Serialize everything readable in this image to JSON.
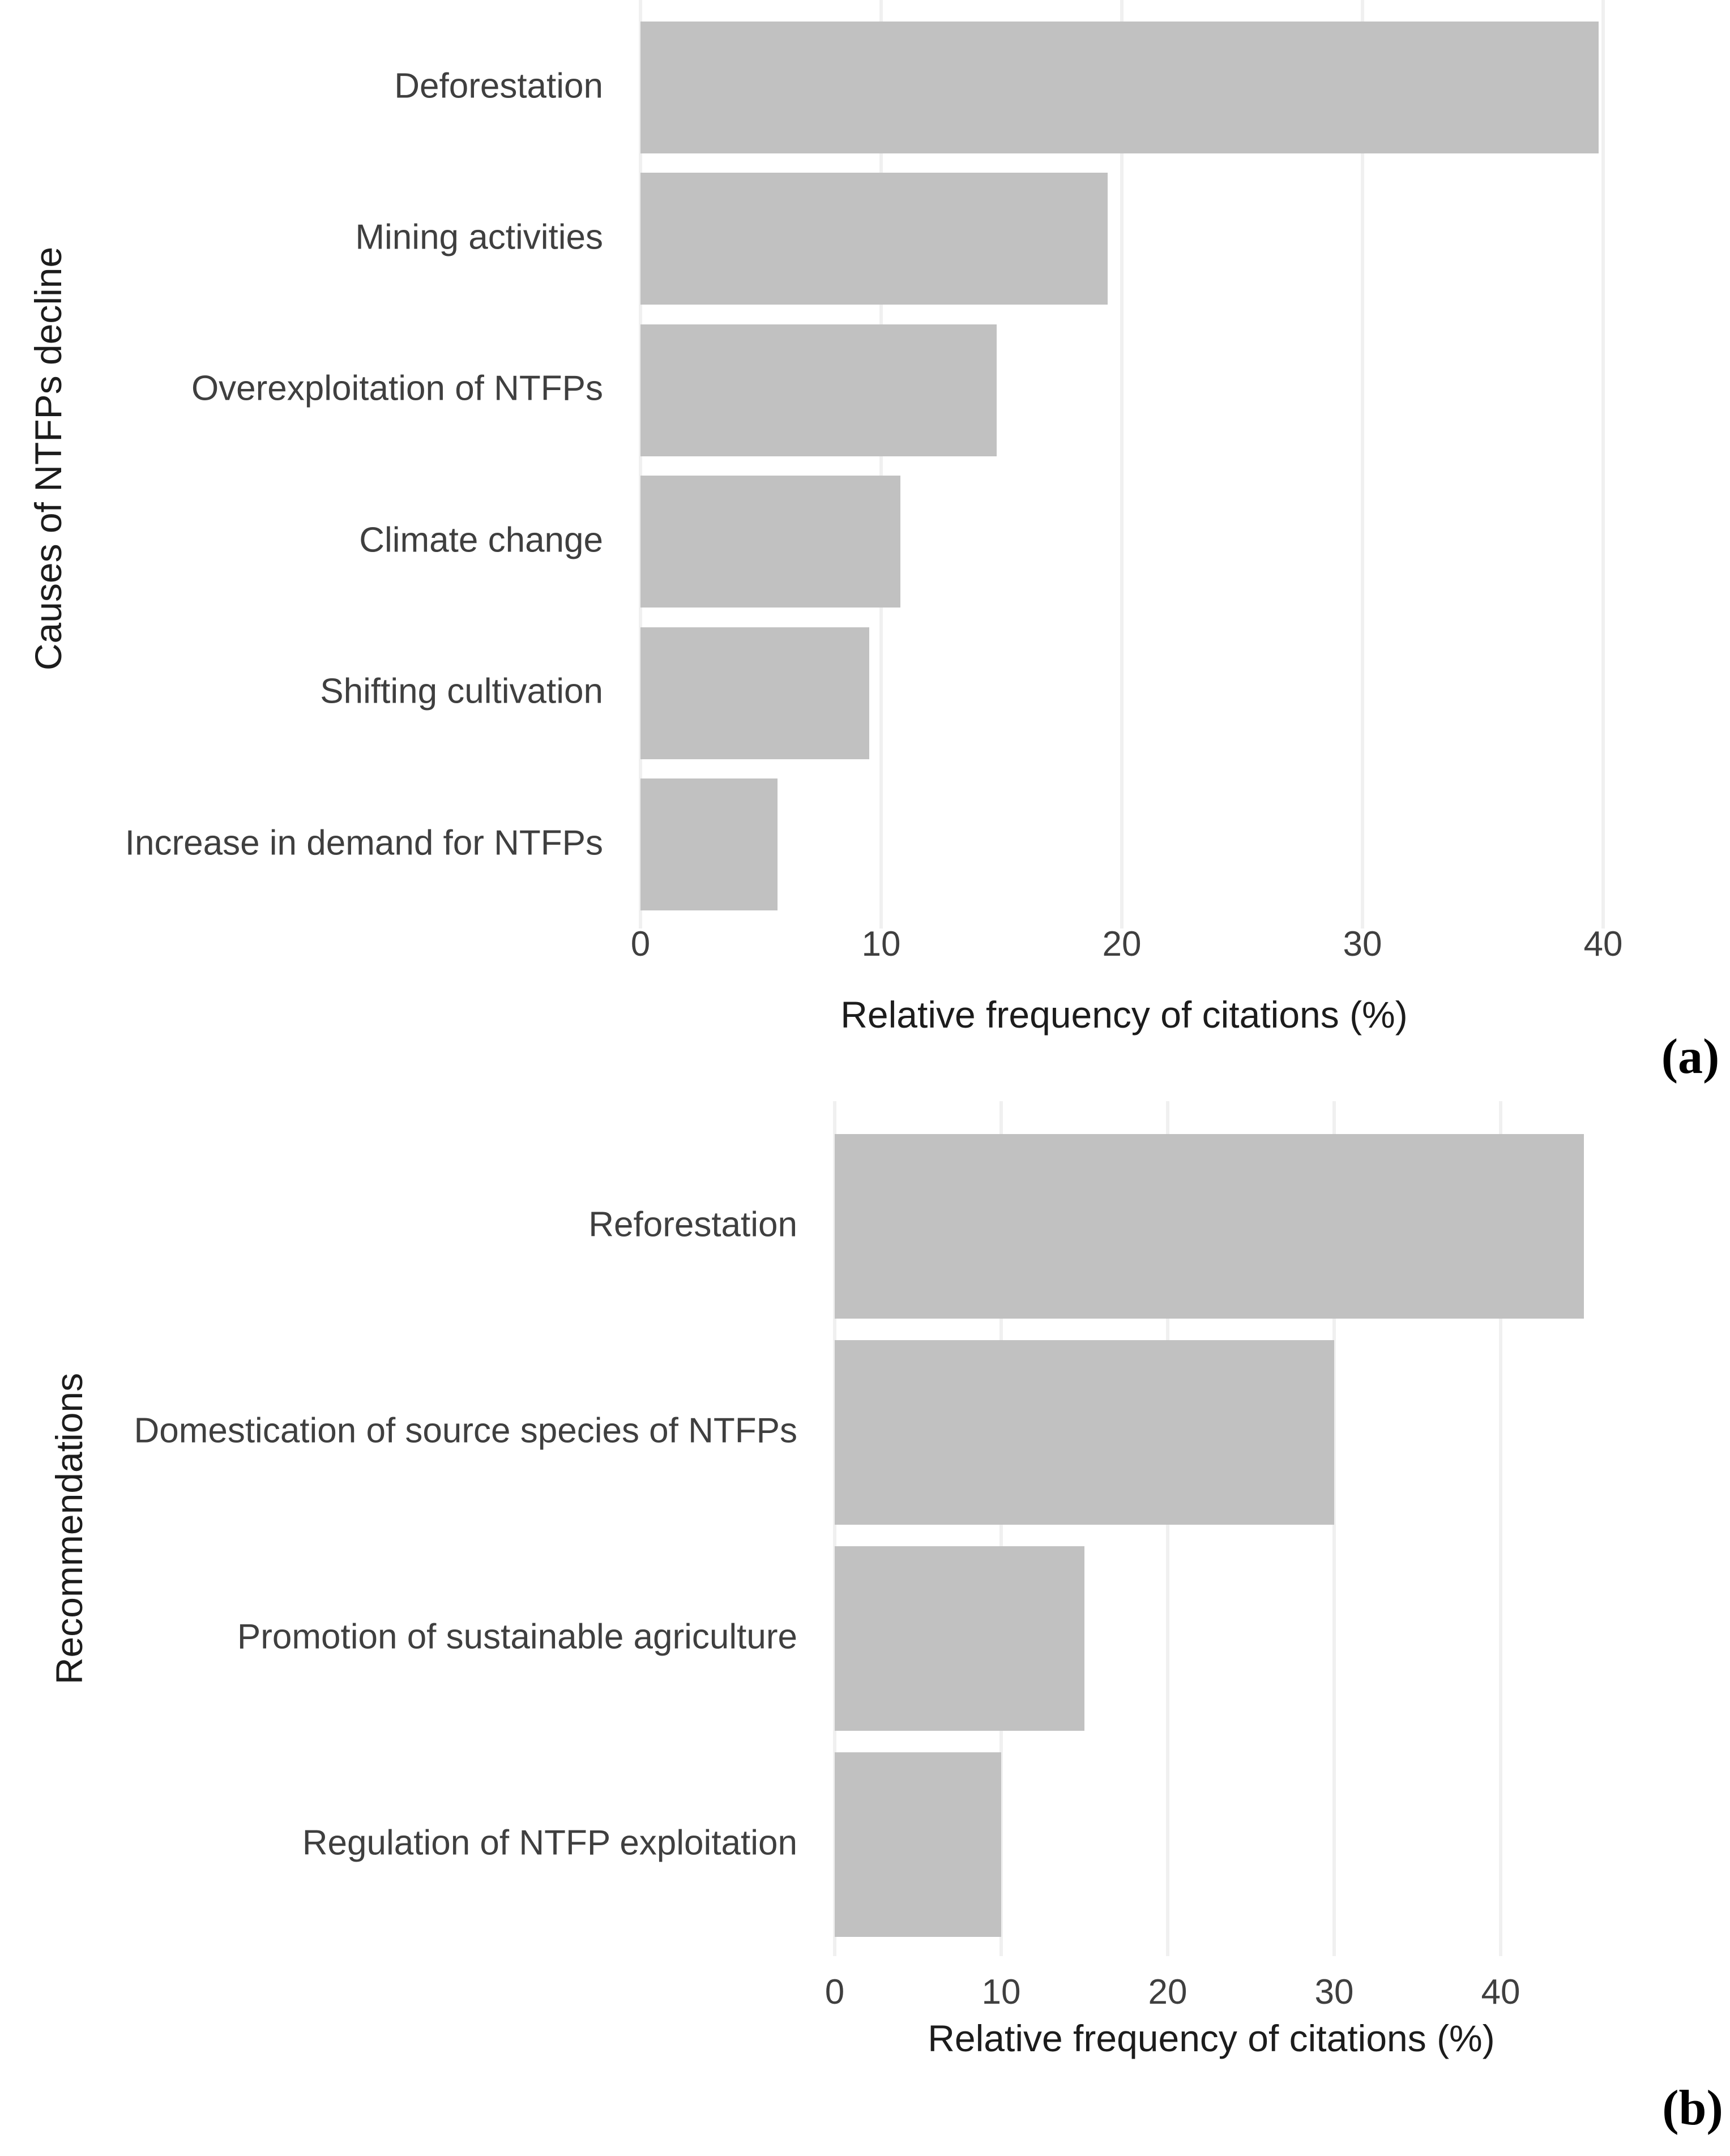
{
  "colors": {
    "background": "#ffffff",
    "bar_fill": "#c1c1c1",
    "gridline": "#f0f0f0",
    "axis_text": "#3f3f3f",
    "axis_title": "#1c1c1c",
    "panel_label": "#000000"
  },
  "chart_data": [
    {
      "id": "a",
      "type": "bar",
      "orientation": "horizontal",
      "panel_label": "(a)",
      "categories": [
        "Deforestation",
        "Mining activities",
        "Overexploitation of NTFPs",
        "Climate change",
        "Shifting cultivation",
        "Increase in demand for NTFPs"
      ],
      "values": [
        39.8,
        19.4,
        14.8,
        10.8,
        9.5,
        5.7
      ],
      "xlabel": "Relative frequency of citations (%)",
      "ylabel": "Causes of NTFPs decline",
      "xticks": [
        0,
        10,
        20,
        30,
        40
      ],
      "xlim": [
        0,
        41.8
      ],
      "grid": "vertical-major-only",
      "legend": "none"
    },
    {
      "id": "b",
      "type": "bar",
      "orientation": "horizontal",
      "panel_label": "(b)",
      "categories": [
        "Reforestation",
        "Domestication of source species of NTFPs",
        "Promotion of sustainable agriculture",
        "Regulation of NTFP exploitation"
      ],
      "values": [
        45,
        30,
        15,
        10
      ],
      "xlabel": "Relative frequency of citations (%)",
      "ylabel": "Recommendations",
      "xticks": [
        0,
        10,
        20,
        30,
        40
      ],
      "xlim": [
        0,
        47.4
      ],
      "grid": "vertical-major-only",
      "legend": "none"
    }
  ]
}
